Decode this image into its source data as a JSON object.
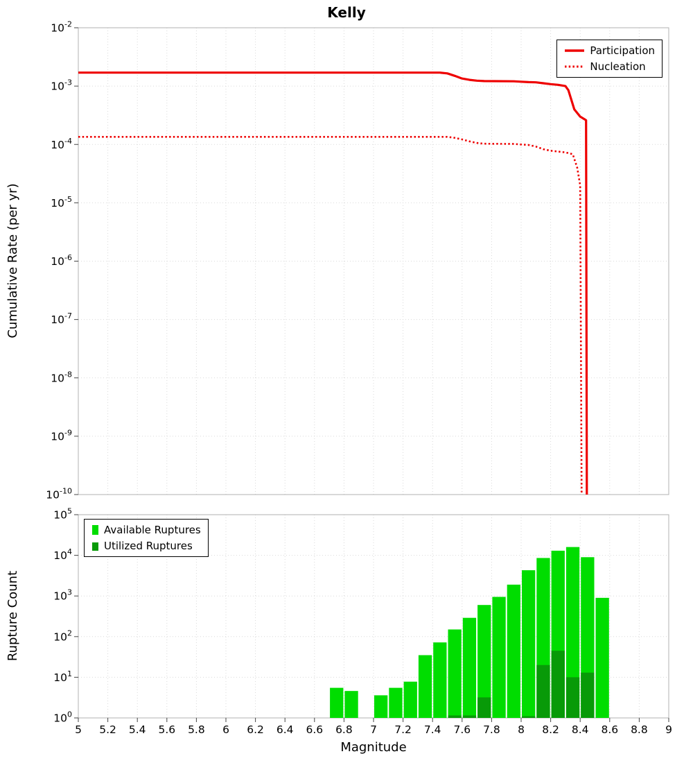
{
  "title": "Kelly",
  "chart_data": [
    {
      "type": "line",
      "title": "Kelly",
      "ylabel": "Cumulative Rate (per yr)",
      "xlabel": "",
      "xlim": [
        5,
        9
      ],
      "ylim_exp": [
        -10,
        -2
      ],
      "grid": true,
      "legend_position": "top-right",
      "x_ticks": [
        5,
        5.2,
        5.4,
        5.6,
        5.8,
        6,
        6.2,
        6.4,
        6.6,
        6.8,
        7,
        7.2,
        7.4,
        7.6,
        7.8,
        8,
        8.2,
        8.4,
        8.6,
        8.8,
        9
      ],
      "y_tick_exps": [
        -2,
        -3,
        -4,
        -5,
        -6,
        -7,
        -8,
        -9,
        -10
      ],
      "series": [
        {
          "name": "Participation",
          "style": "solid",
          "color": "#ee0000",
          "points": [
            [
              5.0,
              0.0017
            ],
            [
              6.0,
              0.0017
            ],
            [
              7.0,
              0.0017
            ],
            [
              7.45,
              0.0017
            ],
            [
              7.5,
              0.00165
            ],
            [
              7.55,
              0.0015
            ],
            [
              7.6,
              0.00135
            ],
            [
              7.65,
              0.00128
            ],
            [
              7.7,
              0.00124
            ],
            [
              7.75,
              0.00122
            ],
            [
              7.95,
              0.00121
            ],
            [
              8.0,
              0.00119
            ],
            [
              8.05,
              0.00117
            ],
            [
              8.1,
              0.00116
            ],
            [
              8.15,
              0.00112
            ],
            [
              8.2,
              0.00108
            ],
            [
              8.25,
              0.00105
            ],
            [
              8.3,
              0.001
            ],
            [
              8.32,
              0.00085
            ],
            [
              8.36,
              0.0004
            ],
            [
              8.4,
              0.0003
            ],
            [
              8.43,
              0.00027
            ],
            [
              8.44,
              0.00026
            ],
            [
              8.445,
              1e-10
            ]
          ]
        },
        {
          "name": "Nucleation",
          "style": "dotted",
          "color": "#ee0000",
          "points": [
            [
              5.0,
              0.000135
            ],
            [
              6.0,
              0.000135
            ],
            [
              7.0,
              0.000135
            ],
            [
              7.5,
              0.000135
            ],
            [
              7.55,
              0.00013
            ],
            [
              7.6,
              0.000122
            ],
            [
              7.65,
              0.000113
            ],
            [
              7.7,
              0.000106
            ],
            [
              7.75,
              0.000103
            ],
            [
              7.95,
              0.000102
            ],
            [
              8.0,
              0.0001
            ],
            [
              8.05,
              9.8e-05
            ],
            [
              8.1,
              9.2e-05
            ],
            [
              8.15,
              8.3e-05
            ],
            [
              8.2,
              7.8e-05
            ],
            [
              8.3,
              7.3e-05
            ],
            [
              8.35,
              6.8e-05
            ],
            [
              8.38,
              4e-05
            ],
            [
              8.4,
              2e-05
            ],
            [
              8.41,
              1e-10
            ]
          ]
        }
      ]
    },
    {
      "type": "bar",
      "ylabel": "Rupture Count",
      "xlabel": "Magnitude",
      "xlim": [
        5,
        9
      ],
      "ylim_exp": [
        0,
        5
      ],
      "grid": true,
      "legend_position": "top-left",
      "bar_width": 0.1,
      "x_ticks": [
        5,
        5.2,
        5.4,
        5.6,
        5.8,
        6,
        6.2,
        6.4,
        6.6,
        6.8,
        7,
        7.2,
        7.4,
        7.6,
        7.8,
        8,
        8.2,
        8.4,
        8.6,
        8.8,
        9
      ],
      "x_tick_labels": [
        "5",
        "5.2",
        "5.4",
        "5.6",
        "5.8",
        "6",
        "6.2",
        "6.4",
        "6.6",
        "6.8",
        "7",
        "7.2",
        "7.4",
        "7.6",
        "7.8",
        "8",
        "8.2",
        "8.4",
        "8.6",
        "8.8",
        "9"
      ],
      "y_tick_exps": [
        0,
        1,
        2,
        3,
        4,
        5
      ],
      "series": [
        {
          "name": "Available Ruptures",
          "color": "#00dd00",
          "bars": [
            [
              6.75,
              5.5
            ],
            [
              6.85,
              4.6
            ],
            [
              7.05,
              3.6
            ],
            [
              7.15,
              5.5
            ],
            [
              7.25,
              7.8
            ],
            [
              7.35,
              35
            ],
            [
              7.45,
              72
            ],
            [
              7.55,
              150
            ],
            [
              7.65,
              290
            ],
            [
              7.75,
              600
            ],
            [
              7.85,
              950
            ],
            [
              7.95,
              1900
            ],
            [
              8.05,
              4300
            ],
            [
              8.15,
              8600
            ],
            [
              8.25,
              13000
            ],
            [
              8.35,
              16000
            ],
            [
              8.45,
              9000
            ],
            [
              8.55,
              900
            ]
          ]
        },
        {
          "name": "Utilized Ruptures",
          "color": "#089a08",
          "bars": [
            [
              7.55,
              1.15
            ],
            [
              7.65,
              1.15
            ],
            [
              7.75,
              3.2
            ],
            [
              8.05,
              1.1
            ],
            [
              8.15,
              20
            ],
            [
              8.25,
              45
            ],
            [
              8.35,
              10
            ],
            [
              8.45,
              13
            ]
          ]
        }
      ]
    }
  ]
}
